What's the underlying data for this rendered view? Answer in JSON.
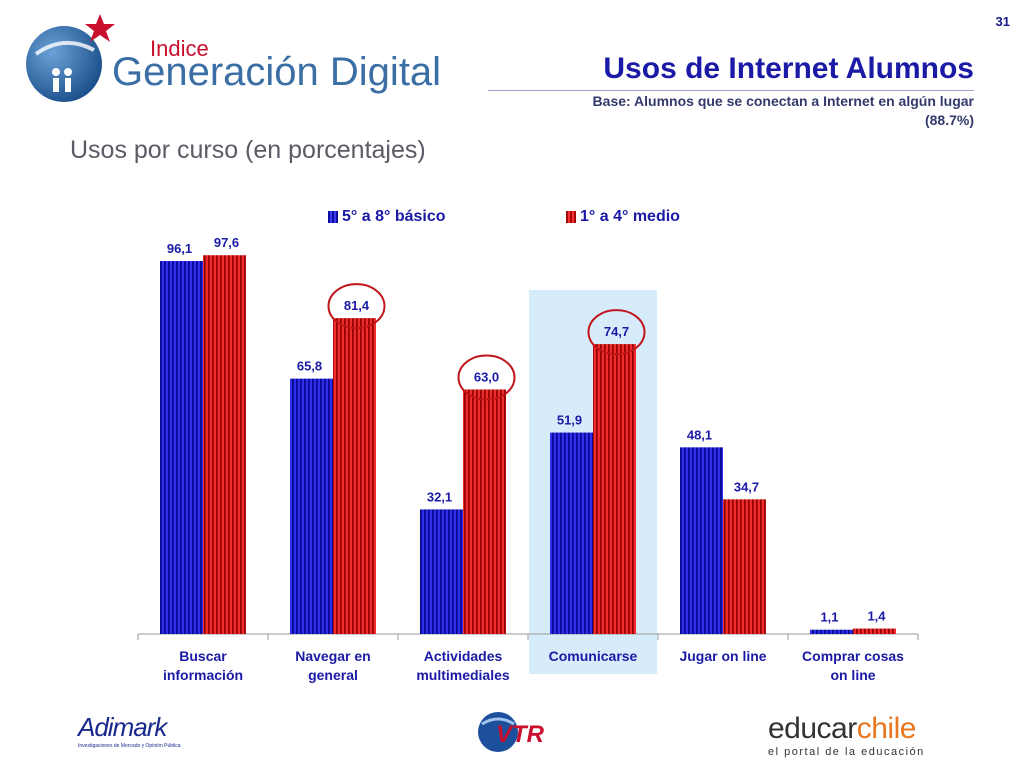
{
  "page_number": "31",
  "logo": {
    "indice": "Indice",
    "name": "Generación Digital"
  },
  "header": {
    "title": "Usos de Internet Alumnos",
    "subtitle_line1": "Base: Alumnos que se conectan a Internet en algún lugar",
    "subtitle_line2": "(88.7%)"
  },
  "section_title": "Usos por curso (en porcentajes)",
  "colors": {
    "series1": "#1414d6",
    "series2": "#e01010",
    "highlight": "#d6ecfa",
    "circle": "#c0151b",
    "label": "#1a1aa6"
  },
  "chart_data": {
    "type": "bar",
    "categories": [
      [
        "Buscar",
        "información"
      ],
      [
        "Navegar en",
        "general"
      ],
      [
        "Actividades",
        "multimediales"
      ],
      [
        "Comunicarse"
      ],
      [
        "Jugar on line"
      ],
      [
        "Comprar cosas",
        "on line"
      ]
    ],
    "series": [
      {
        "name": "5° a 8° básico",
        "values": [
          96.1,
          65.8,
          32.1,
          51.9,
          48.1,
          1.1
        ],
        "labels": [
          "96,1",
          "65,8",
          "32,1",
          "51,9",
          "48,1",
          "1,1"
        ]
      },
      {
        "name": "1° a 4° medio",
        "values": [
          97.6,
          81.4,
          63.0,
          74.7,
          34.7,
          1.4
        ],
        "labels": [
          "97,6",
          "81,4",
          "63,0",
          "74,7",
          "34,7",
          "1,4"
        ]
      }
    ],
    "ylim": [
      0,
      100
    ],
    "highlighted_category": "Comunicarse",
    "circled_labels": [
      "81,4",
      "63,0",
      "74,7"
    ],
    "legend_position": "top",
    "grid": false
  },
  "footer": {
    "adimark": "Adimark",
    "adimark_tagline": "Investigaciones de Mercado y Opinión Pública",
    "vtr": "VTR",
    "educar": "educar",
    "chile": "chile",
    "educar_tagline": "el portal de la educación"
  }
}
